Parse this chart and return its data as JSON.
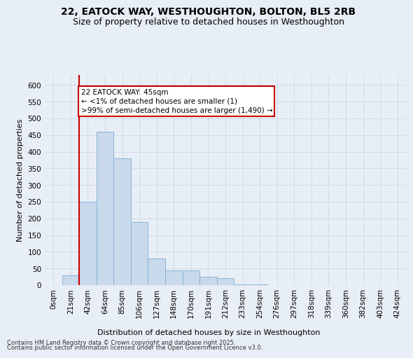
{
  "title_line1": "22, EATOCK WAY, WESTHOUGHTON, BOLTON, BL5 2RB",
  "title_line2": "Size of property relative to detached houses in Westhoughton",
  "xlabel": "Distribution of detached houses by size in Westhoughton",
  "ylabel": "Number of detached properties",
  "bin_labels": [
    "0sqm",
    "21sqm",
    "42sqm",
    "64sqm",
    "85sqm",
    "106sqm",
    "127sqm",
    "148sqm",
    "170sqm",
    "191sqm",
    "212sqm",
    "233sqm",
    "254sqm",
    "276sqm",
    "297sqm",
    "318sqm",
    "339sqm",
    "360sqm",
    "382sqm",
    "403sqm",
    "424sqm"
  ],
  "bar_heights": [
    0,
    30,
    250,
    460,
    380,
    190,
    80,
    45,
    45,
    25,
    20,
    3,
    3,
    0,
    0,
    0,
    0,
    0,
    0,
    0,
    0
  ],
  "bar_color": "#c9d9ec",
  "bar_edge_color": "#7aadd4",
  "grid_color": "#d0d8e8",
  "background_color": "#e8eef5",
  "property_line_x": 1.5,
  "property_line_color": "#cc0000",
  "annotation_text": "22 EATOCK WAY: 45sqm\n← <1% of detached houses are smaller (1)\n>99% of semi-detached houses are larger (1,490) →",
  "annotation_box_color": "#ffffff",
  "annotation_border_color": "#cc0000",
  "ylim": [
    0,
    630
  ],
  "yticks": [
    0,
    50,
    100,
    150,
    200,
    250,
    300,
    350,
    400,
    450,
    500,
    550,
    600
  ],
  "footer_line1": "Contains HM Land Registry data © Crown copyright and database right 2025.",
  "footer_line2": "Contains public sector information licensed under the Open Government Licence v3.0.",
  "title_fontsize": 10,
  "subtitle_fontsize": 9,
  "axis_label_fontsize": 8,
  "tick_fontsize": 7.5,
  "annotation_fontsize": 7.5
}
